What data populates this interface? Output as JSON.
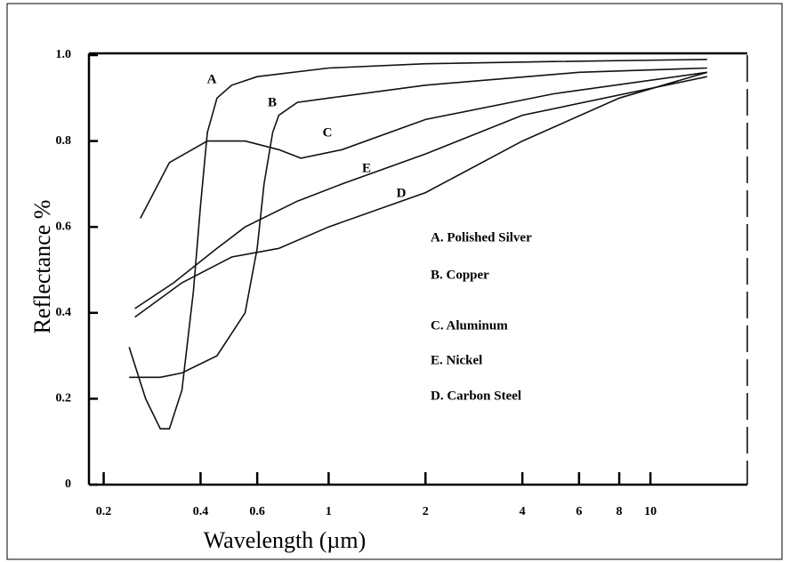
{
  "chart_data": {
    "type": "line",
    "xlabel": "Wavelength (µm)",
    "ylabel": "Reflectance %",
    "log_x": true,
    "xlim": [
      0.18,
      20
    ],
    "ylim": [
      0,
      1
    ],
    "xticks": [
      0.2,
      0.4,
      0.6,
      1,
      2,
      4,
      6,
      8,
      10
    ],
    "yticks": [
      0,
      0.2,
      0.4,
      0.6,
      0.8,
      {
        "value": 1,
        "label": "1.0"
      }
    ],
    "series": [
      {
        "name": "A. Polished Silver",
        "label": "A",
        "color": "#111111",
        "x": [
          0.24,
          0.27,
          0.3,
          0.32,
          0.35,
          0.38,
          0.4,
          0.42,
          0.45,
          0.5,
          0.6,
          1,
          2,
          5,
          15
        ],
        "values": [
          0.32,
          0.2,
          0.13,
          0.13,
          0.22,
          0.45,
          0.65,
          0.82,
          0.9,
          0.93,
          0.95,
          0.97,
          0.98,
          0.985,
          0.99
        ]
      },
      {
        "name": "B. Copper",
        "label": "B",
        "color": "#111111",
        "x": [
          0.24,
          0.3,
          0.35,
          0.45,
          0.55,
          0.6,
          0.63,
          0.67,
          0.7,
          0.8,
          1,
          2,
          6,
          15
        ],
        "values": [
          0.25,
          0.25,
          0.26,
          0.3,
          0.4,
          0.55,
          0.7,
          0.82,
          0.86,
          0.89,
          0.9,
          0.93,
          0.96,
          0.97
        ]
      },
      {
        "name": "C. Aluminum",
        "label": "C",
        "color": "#111111",
        "x": [
          0.26,
          0.32,
          0.42,
          0.55,
          0.7,
          0.82,
          1.1,
          2,
          5,
          15
        ],
        "values": [
          0.62,
          0.75,
          0.8,
          0.8,
          0.78,
          0.76,
          0.78,
          0.85,
          0.91,
          0.96
        ]
      },
      {
        "name": "E. Nickel",
        "label": "E",
        "color": "#111111",
        "x": [
          0.25,
          0.33,
          0.45,
          0.55,
          0.8,
          1.1,
          2,
          4,
          15
        ],
        "values": [
          0.41,
          0.47,
          0.55,
          0.6,
          0.66,
          0.7,
          0.77,
          0.86,
          0.95
        ]
      },
      {
        "name": "D. Carbon Steel",
        "label": "D",
        "color": "#111111",
        "x": [
          0.25,
          0.35,
          0.5,
          0.7,
          1,
          2,
          4,
          8,
          15
        ],
        "values": [
          0.39,
          0.47,
          0.53,
          0.55,
          0.6,
          0.68,
          0.8,
          0.9,
          0.96
        ]
      }
    ]
  }
}
